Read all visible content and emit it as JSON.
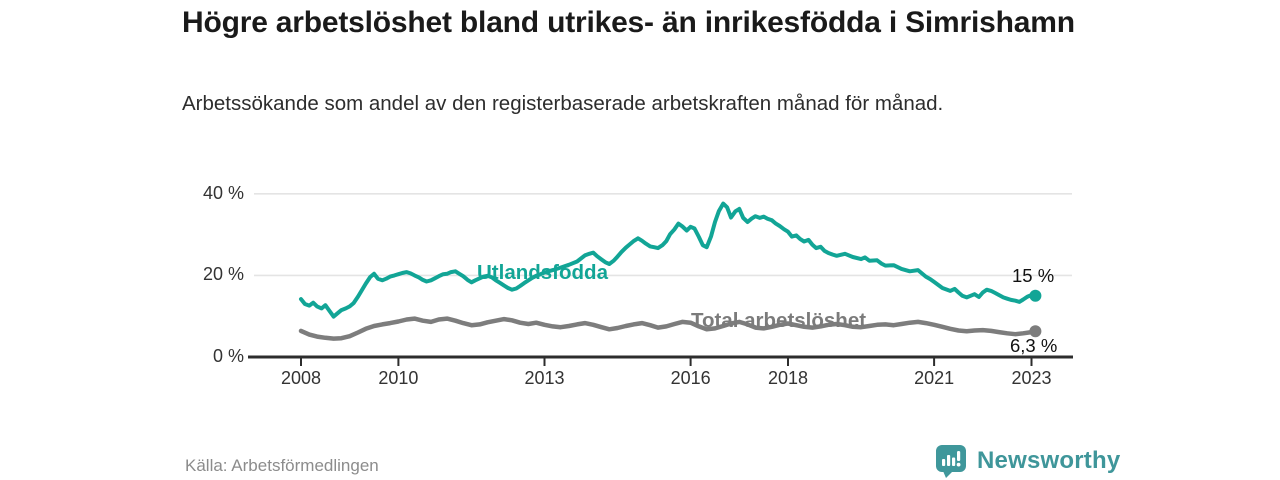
{
  "chart_data": {
    "type": "line",
    "title": "Högre arbetslöshet bland utrikes- än inrikesfödda i Simrishamn",
    "subtitle": "Arbetssökande som andel av den registerbaserade arbetskraften månad för månad.",
    "source": "Källa: Arbetsförmedlingen",
    "x_axis": {
      "ticks": [
        {
          "year": 2008,
          "label": "2008"
        },
        {
          "year": 2010,
          "label": "2010"
        },
        {
          "year": 2013,
          "label": "2013"
        },
        {
          "year": 2016,
          "label": "2016"
        },
        {
          "year": 2018,
          "label": "2018"
        },
        {
          "year": 2021,
          "label": "2021"
        },
        {
          "year": 2023,
          "label": "2023"
        }
      ],
      "range": [
        2008,
        2023.2
      ]
    },
    "y_axis": {
      "ticks": [
        {
          "value": 0,
          "label": "0 %"
        },
        {
          "value": 20,
          "label": "20 %"
        },
        {
          "value": 40,
          "label": "40 %"
        }
      ],
      "range": [
        0,
        42
      ],
      "grid": true,
      "unit": "%"
    },
    "series": [
      {
        "name": "Utlandsfödda",
        "color": "#12a596",
        "stroke_width": 4,
        "end_label": "15 %",
        "end_value": 15,
        "points": [
          [
            2008.0,
            14.2
          ],
          [
            2008.08,
            13.0
          ],
          [
            2008.17,
            12.6
          ],
          [
            2008.25,
            13.3
          ],
          [
            2008.33,
            12.4
          ],
          [
            2008.42,
            11.9
          ],
          [
            2008.5,
            12.7
          ],
          [
            2008.58,
            11.4
          ],
          [
            2008.67,
            9.9
          ],
          [
            2008.75,
            10.7
          ],
          [
            2008.83,
            11.5
          ],
          [
            2008.92,
            11.9
          ],
          [
            2009.0,
            12.4
          ],
          [
            2009.08,
            13.2
          ],
          [
            2009.17,
            14.8
          ],
          [
            2009.25,
            16.4
          ],
          [
            2009.33,
            18.0
          ],
          [
            2009.42,
            19.6
          ],
          [
            2009.5,
            20.4
          ],
          [
            2009.58,
            19.2
          ],
          [
            2009.67,
            18.8
          ],
          [
            2009.75,
            19.2
          ],
          [
            2009.83,
            19.7
          ],
          [
            2009.92,
            20.0
          ],
          [
            2010.0,
            20.3
          ],
          [
            2010.08,
            20.6
          ],
          [
            2010.17,
            20.8
          ],
          [
            2010.25,
            20.5
          ],
          [
            2010.33,
            20.0
          ],
          [
            2010.42,
            19.5
          ],
          [
            2010.5,
            18.9
          ],
          [
            2010.58,
            18.5
          ],
          [
            2010.67,
            18.8
          ],
          [
            2010.75,
            19.3
          ],
          [
            2010.83,
            19.8
          ],
          [
            2010.92,
            20.3
          ],
          [
            2011.0,
            20.4
          ],
          [
            2011.08,
            20.8
          ],
          [
            2011.17,
            21.0
          ],
          [
            2011.25,
            20.4
          ],
          [
            2011.33,
            19.8
          ],
          [
            2011.42,
            18.9
          ],
          [
            2011.5,
            18.3
          ],
          [
            2011.58,
            18.8
          ],
          [
            2011.67,
            19.3
          ],
          [
            2011.75,
            19.7
          ],
          [
            2011.83,
            19.9
          ],
          [
            2011.92,
            19.5
          ],
          [
            2012.0,
            18.8
          ],
          [
            2012.08,
            18.2
          ],
          [
            2012.17,
            17.5
          ],
          [
            2012.25,
            16.9
          ],
          [
            2012.33,
            16.5
          ],
          [
            2012.42,
            16.8
          ],
          [
            2012.5,
            17.4
          ],
          [
            2012.58,
            18.1
          ],
          [
            2012.67,
            18.8
          ],
          [
            2012.75,
            19.4
          ],
          [
            2012.83,
            19.9
          ],
          [
            2012.92,
            20.3
          ],
          [
            2013.0,
            20.7
          ],
          [
            2013.17,
            21.3
          ],
          [
            2013.33,
            21.9
          ],
          [
            2013.5,
            22.6
          ],
          [
            2013.67,
            23.4
          ],
          [
            2013.83,
            24.9
          ],
          [
            2013.92,
            25.3
          ],
          [
            2014.0,
            25.6
          ],
          [
            2014.08,
            24.7
          ],
          [
            2014.17,
            23.9
          ],
          [
            2014.25,
            23.2
          ],
          [
            2014.33,
            22.8
          ],
          [
            2014.42,
            23.6
          ],
          [
            2014.5,
            24.6
          ],
          [
            2014.58,
            25.7
          ],
          [
            2014.67,
            26.8
          ],
          [
            2014.75,
            27.6
          ],
          [
            2014.83,
            28.4
          ],
          [
            2014.92,
            29.1
          ],
          [
            2015.0,
            28.5
          ],
          [
            2015.08,
            27.8
          ],
          [
            2015.17,
            27.1
          ],
          [
            2015.25,
            26.9
          ],
          [
            2015.33,
            26.7
          ],
          [
            2015.42,
            27.4
          ],
          [
            2015.5,
            28.4
          ],
          [
            2015.58,
            30.1
          ],
          [
            2015.67,
            31.3
          ],
          [
            2015.75,
            32.7
          ],
          [
            2015.83,
            32.0
          ],
          [
            2015.92,
            31.0
          ],
          [
            2016.0,
            31.9
          ],
          [
            2016.08,
            31.5
          ],
          [
            2016.17,
            29.4
          ],
          [
            2016.25,
            27.4
          ],
          [
            2016.33,
            26.9
          ],
          [
            2016.42,
            29.6
          ],
          [
            2016.5,
            33.1
          ],
          [
            2016.58,
            35.7
          ],
          [
            2016.67,
            37.6
          ],
          [
            2016.75,
            36.7
          ],
          [
            2016.83,
            34.2
          ],
          [
            2016.92,
            35.7
          ],
          [
            2017.0,
            36.3
          ],
          [
            2017.08,
            34.1
          ],
          [
            2017.17,
            33.1
          ],
          [
            2017.25,
            33.9
          ],
          [
            2017.33,
            34.5
          ],
          [
            2017.42,
            34.1
          ],
          [
            2017.5,
            34.4
          ],
          [
            2017.58,
            33.9
          ],
          [
            2017.67,
            33.5
          ],
          [
            2017.75,
            32.7
          ],
          [
            2017.83,
            32.1
          ],
          [
            2017.92,
            31.3
          ],
          [
            2018.0,
            30.7
          ],
          [
            2018.08,
            29.5
          ],
          [
            2018.17,
            29.8
          ],
          [
            2018.25,
            28.9
          ],
          [
            2018.33,
            28.3
          ],
          [
            2018.42,
            28.7
          ],
          [
            2018.5,
            27.5
          ],
          [
            2018.58,
            26.7
          ],
          [
            2018.67,
            27.0
          ],
          [
            2018.75,
            26.0
          ],
          [
            2018.83,
            25.5
          ],
          [
            2018.92,
            25.1
          ],
          [
            2019.0,
            24.8
          ],
          [
            2019.17,
            25.3
          ],
          [
            2019.33,
            24.5
          ],
          [
            2019.5,
            24.0
          ],
          [
            2019.58,
            24.4
          ],
          [
            2019.67,
            23.6
          ],
          [
            2019.83,
            23.7
          ],
          [
            2019.92,
            22.9
          ],
          [
            2020.0,
            22.4
          ],
          [
            2020.17,
            22.5
          ],
          [
            2020.33,
            21.6
          ],
          [
            2020.5,
            21.0
          ],
          [
            2020.67,
            21.3
          ],
          [
            2020.83,
            19.7
          ],
          [
            2020.92,
            19.1
          ],
          [
            2021.0,
            18.4
          ],
          [
            2021.17,
            16.9
          ],
          [
            2021.33,
            16.2
          ],
          [
            2021.42,
            16.7
          ],
          [
            2021.5,
            15.8
          ],
          [
            2021.58,
            15.0
          ],
          [
            2021.67,
            14.6
          ],
          [
            2021.75,
            15.0
          ],
          [
            2021.83,
            15.4
          ],
          [
            2021.92,
            14.7
          ],
          [
            2022.0,
            15.8
          ],
          [
            2022.08,
            16.5
          ],
          [
            2022.17,
            16.2
          ],
          [
            2022.25,
            15.7
          ],
          [
            2022.33,
            15.2
          ],
          [
            2022.42,
            14.6
          ],
          [
            2022.5,
            14.3
          ],
          [
            2022.58,
            14.0
          ],
          [
            2022.67,
            13.8
          ],
          [
            2022.75,
            13.5
          ],
          [
            2022.83,
            14.1
          ],
          [
            2022.92,
            14.8
          ],
          [
            2023.0,
            15.2
          ],
          [
            2023.08,
            15.0
          ]
        ]
      },
      {
        "name": "Total arbetslöshet",
        "color": "#7d7d7d",
        "stroke_width": 4.5,
        "end_label": "6,3 %",
        "end_value": 6.3,
        "points": [
          [
            2008.0,
            6.4
          ],
          [
            2008.17,
            5.5
          ],
          [
            2008.33,
            5.0
          ],
          [
            2008.5,
            4.7
          ],
          [
            2008.67,
            4.5
          ],
          [
            2008.83,
            4.6
          ],
          [
            2009.0,
            5.1
          ],
          [
            2009.17,
            6.0
          ],
          [
            2009.33,
            6.9
          ],
          [
            2009.5,
            7.6
          ],
          [
            2009.67,
            8.0
          ],
          [
            2009.83,
            8.3
          ],
          [
            2010.0,
            8.7
          ],
          [
            2010.17,
            9.2
          ],
          [
            2010.33,
            9.4
          ],
          [
            2010.5,
            8.9
          ],
          [
            2010.67,
            8.6
          ],
          [
            2010.83,
            9.2
          ],
          [
            2011.0,
            9.4
          ],
          [
            2011.17,
            8.9
          ],
          [
            2011.33,
            8.3
          ],
          [
            2011.5,
            7.8
          ],
          [
            2011.67,
            8.0
          ],
          [
            2011.83,
            8.5
          ],
          [
            2012.0,
            8.9
          ],
          [
            2012.17,
            9.3
          ],
          [
            2012.33,
            9.0
          ],
          [
            2012.5,
            8.4
          ],
          [
            2012.67,
            8.1
          ],
          [
            2012.83,
            8.4
          ],
          [
            2013.0,
            7.9
          ],
          [
            2013.17,
            7.5
          ],
          [
            2013.33,
            7.3
          ],
          [
            2013.5,
            7.6
          ],
          [
            2013.67,
            8.0
          ],
          [
            2013.83,
            8.3
          ],
          [
            2014.0,
            7.9
          ],
          [
            2014.17,
            7.3
          ],
          [
            2014.33,
            6.8
          ],
          [
            2014.5,
            7.1
          ],
          [
            2014.67,
            7.6
          ],
          [
            2014.83,
            8.0
          ],
          [
            2015.0,
            8.3
          ],
          [
            2015.17,
            7.8
          ],
          [
            2015.33,
            7.2
          ],
          [
            2015.5,
            7.5
          ],
          [
            2015.67,
            8.1
          ],
          [
            2015.83,
            8.6
          ],
          [
            2016.0,
            8.4
          ],
          [
            2016.17,
            7.5
          ],
          [
            2016.33,
            6.8
          ],
          [
            2016.5,
            7.0
          ],
          [
            2016.67,
            7.6
          ],
          [
            2016.83,
            8.2
          ],
          [
            2017.0,
            8.6
          ],
          [
            2017.17,
            8.0
          ],
          [
            2017.33,
            7.2
          ],
          [
            2017.5,
            7.0
          ],
          [
            2017.67,
            7.4
          ],
          [
            2017.83,
            7.9
          ],
          [
            2018.0,
            8.2
          ],
          [
            2018.17,
            7.8
          ],
          [
            2018.33,
            7.4
          ],
          [
            2018.5,
            7.2
          ],
          [
            2018.67,
            7.5
          ],
          [
            2018.83,
            7.9
          ],
          [
            2019.0,
            8.1
          ],
          [
            2019.17,
            7.8
          ],
          [
            2019.33,
            7.4
          ],
          [
            2019.5,
            7.3
          ],
          [
            2019.67,
            7.6
          ],
          [
            2019.83,
            7.9
          ],
          [
            2020.0,
            8.0
          ],
          [
            2020.17,
            7.8
          ],
          [
            2020.33,
            8.1
          ],
          [
            2020.5,
            8.4
          ],
          [
            2020.67,
            8.6
          ],
          [
            2020.83,
            8.3
          ],
          [
            2021.0,
            7.9
          ],
          [
            2021.17,
            7.4
          ],
          [
            2021.33,
            6.9
          ],
          [
            2021.5,
            6.5
          ],
          [
            2021.67,
            6.3
          ],
          [
            2021.83,
            6.5
          ],
          [
            2022.0,
            6.6
          ],
          [
            2022.17,
            6.4
          ],
          [
            2022.33,
            6.1
          ],
          [
            2022.5,
            5.8
          ],
          [
            2022.67,
            5.6
          ],
          [
            2022.83,
            5.8
          ],
          [
            2023.0,
            6.1
          ],
          [
            2023.08,
            6.3
          ]
        ]
      }
    ]
  },
  "footer": {
    "brand": "Newsworthy"
  },
  "colors": {
    "teal": "#12a596",
    "gray": "#7d7d7d",
    "brand_teal": "#3f969a",
    "axis": "#2d2d2d",
    "grid": "#e4e4e4",
    "text_dark": "#1a1a1a",
    "text_muted": "#8c8c8c"
  }
}
